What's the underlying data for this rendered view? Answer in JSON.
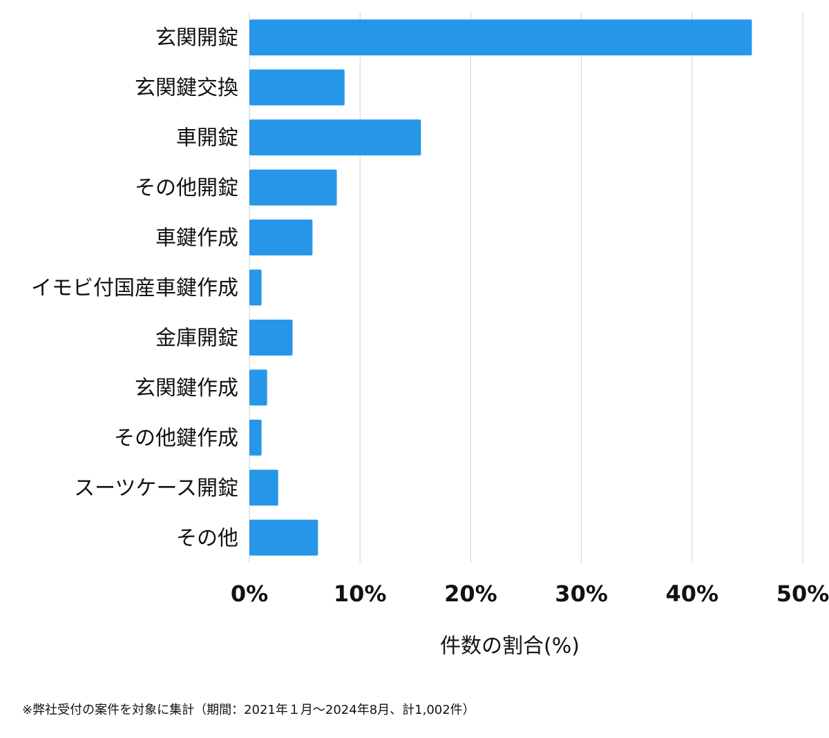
{
  "chart_data": {
    "type": "bar",
    "orientation": "horizontal",
    "categories": [
      "玄関開錠",
      "玄関鍵交換",
      "車開錠",
      "その他開錠",
      "車鍵作成",
      "イモビ付国産車鍵作成",
      "金庫開錠",
      "玄関鍵作成",
      "その他鍵作成",
      "スーツケース開錠",
      "その他"
    ],
    "values": [
      45.4,
      8.6,
      15.5,
      7.9,
      5.7,
      1.1,
      3.9,
      1.6,
      1.1,
      2.6,
      6.2
    ],
    "color": "#2696e8",
    "xlim": [
      0,
      50
    ],
    "xticks": [
      {
        "value": 0,
        "label": "0%"
      },
      {
        "value": 10,
        "label": "10%"
      },
      {
        "value": 20,
        "label": "20%"
      },
      {
        "value": 30,
        "label": "30%"
      },
      {
        "value": 40,
        "label": "40%"
      },
      {
        "value": 50,
        "label": "50%"
      }
    ],
    "grid": true,
    "xlabel": "件数の割合(%)",
    "footnote": "※弊社受付の案件を対象に集計（期間：2021年１月〜2024年8月、計1,002件）"
  }
}
